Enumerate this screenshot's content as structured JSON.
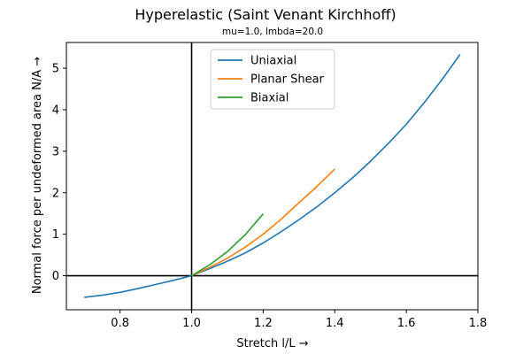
{
  "chart_data": {
    "type": "line",
    "title": "Hyperelastic (Saint Venant Kirchhoff)",
    "subtitle": "mu=1.0, lmbda=20.0",
    "xlabel": "Stretch l/L  →",
    "ylabel": "Normal force per undeformed area N/A  →",
    "xlim": [
      0.65,
      1.8
    ],
    "ylim": [
      -0.82,
      5.62
    ],
    "xticks": [
      0.8,
      1.0,
      1.2,
      1.4,
      1.6,
      1.8
    ],
    "xtick_labels": [
      "0.8",
      "1.0",
      "1.2",
      "1.4",
      "1.6",
      "1.8"
    ],
    "yticks": [
      0,
      1,
      2,
      3,
      4,
      5
    ],
    "ytick_labels": [
      "0",
      "1",
      "2",
      "3",
      "4",
      "5"
    ],
    "grid": false,
    "legend_position": "top-center",
    "reference_lines": {
      "x": 1.0,
      "y": 0
    },
    "series": [
      {
        "name": "Uniaxial",
        "color": "#1f77b4",
        "x": [
          0.7,
          0.75,
          0.8,
          0.85,
          0.9,
          0.95,
          1.0,
          1.05,
          1.1,
          1.15,
          1.2,
          1.25,
          1.3,
          1.35,
          1.4,
          1.45,
          1.5,
          1.55,
          1.6,
          1.65,
          1.7,
          1.75
        ],
        "y": [
          -0.52,
          -0.47,
          -0.4,
          -0.31,
          -0.21,
          -0.11,
          0.0,
          0.17,
          0.35,
          0.55,
          0.79,
          1.06,
          1.35,
          1.66,
          2.0,
          2.36,
          2.76,
          3.19,
          3.65,
          4.17,
          4.73,
          5.33
        ]
      },
      {
        "name": "Planar Shear",
        "color": "#ff7f0e",
        "x": [
          1.0,
          1.05,
          1.1,
          1.15,
          1.2,
          1.25,
          1.3,
          1.35,
          1.4
        ],
        "y": [
          0.0,
          0.2,
          0.42,
          0.69,
          1.0,
          1.36,
          1.76,
          2.15,
          2.57
        ]
      },
      {
        "name": "Biaxial",
        "color": "#2ca02c",
        "x": [
          1.0,
          1.05,
          1.1,
          1.15,
          1.2
        ],
        "y": [
          0.0,
          0.26,
          0.58,
          0.99,
          1.49
        ]
      }
    ]
  }
}
